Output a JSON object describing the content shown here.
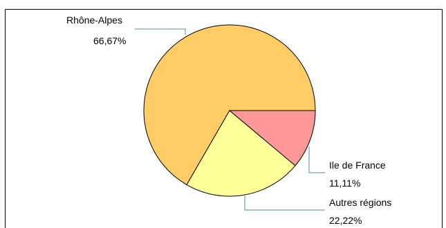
{
  "colors": {
    "slice_rhone_alpes": "#ffcc66",
    "slice_autres_regions": "#ffff99",
    "slice_ile_de_france": "#ff9999",
    "slice_outline": "#000000",
    "leader_line": "#4a8f8f",
    "frame_border": "#000000"
  },
  "chart_data": {
    "type": "pie",
    "slices": [
      {
        "label": "Rhône-Alpes",
        "percent_text": "66,67%",
        "value": 66.67
      },
      {
        "label": "Autres régions",
        "percent_text": "22,22%",
        "value": 22.22
      },
      {
        "label": "Ile de France",
        "percent_text": "11,11%",
        "value": 11.11
      }
    ]
  }
}
